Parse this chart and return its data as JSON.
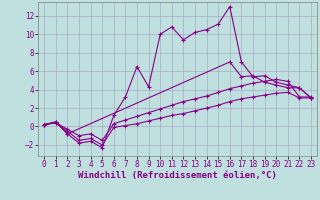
{
  "background_color": "#c0e0e0",
  "grid_color": "#a0a0c0",
  "line_color": "#880088",
  "spine_color": "#808080",
  "xlim": [
    -0.5,
    23.5
  ],
  "ylim": [
    -3.2,
    13.5
  ],
  "xlabel": "Windchill (Refroidissement éolien,°C)",
  "xticks": [
    0,
    1,
    2,
    3,
    4,
    5,
    6,
    7,
    8,
    9,
    10,
    11,
    12,
    13,
    14,
    15,
    16,
    17,
    18,
    19,
    20,
    21,
    22,
    23
  ],
  "yticks": [
    -2,
    0,
    2,
    4,
    6,
    8,
    10,
    12
  ],
  "series": [
    {
      "x": [
        0,
        1,
        2,
        3,
        4,
        5,
        6,
        7,
        8,
        9,
        10,
        11,
        12,
        13,
        14,
        15,
        16,
        17,
        18,
        19,
        20,
        21,
        22,
        23
      ],
      "y": [
        0.2,
        0.5,
        -0.8,
        -1.8,
        -1.6,
        -2.3,
        1.2,
        3.2,
        6.5,
        4.3,
        10.0,
        10.8,
        9.4,
        10.2,
        10.5,
        11.1,
        13.0,
        7.0,
        5.4,
        5.5,
        4.8,
        4.5,
        4.2,
        3.1
      ]
    },
    {
      "x": [
        0,
        1,
        2,
        16,
        17,
        18,
        19,
        20,
        21,
        22,
        23
      ],
      "y": [
        0.2,
        0.5,
        -0.8,
        7.0,
        5.4,
        5.5,
        4.8,
        4.5,
        4.2,
        4.2,
        3.1
      ]
    },
    {
      "x": [
        0,
        1,
        2,
        3,
        4,
        5,
        6,
        7,
        8,
        9,
        10,
        11,
        12,
        13,
        14,
        15,
        16,
        17,
        18,
        19,
        20,
        21,
        22,
        23
      ],
      "y": [
        0.2,
        0.4,
        -0.5,
        -1.5,
        -1.3,
        -2.0,
        -0.1,
        0.1,
        0.3,
        0.6,
        0.9,
        1.2,
        1.4,
        1.7,
        2.0,
        2.3,
        2.7,
        3.0,
        3.2,
        3.4,
        3.6,
        3.7,
        3.1,
        3.1
      ]
    },
    {
      "x": [
        0,
        1,
        2,
        3,
        4,
        5,
        6,
        7,
        8,
        9,
        10,
        11,
        12,
        13,
        14,
        15,
        16,
        17,
        18,
        19,
        20,
        21,
        22,
        23
      ],
      "y": [
        0.2,
        0.4,
        -0.3,
        -1.0,
        -0.8,
        -1.5,
        0.3,
        0.7,
        1.1,
        1.5,
        1.9,
        2.3,
        2.7,
        3.0,
        3.3,
        3.7,
        4.1,
        4.4,
        4.7,
        4.9,
        5.1,
        4.9,
        3.2,
        3.2
      ]
    }
  ],
  "marker": "+",
  "markersize": 3,
  "markeredgewidth": 0.8,
  "linewidth": 0.8,
  "xlabel_fontsize": 6.5,
  "tick_fontsize": 5.5
}
